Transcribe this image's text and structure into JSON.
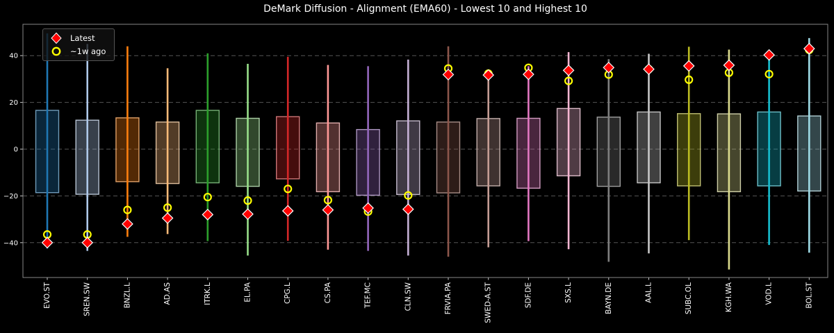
{
  "chart_data": {
    "type": "scatter",
    "subtype": "range-box-whisker",
    "title": "DeMark Diffusion - Alignment (EMA60) - Lowest 10 and Highest 10",
    "xlabel": "",
    "ylabel": "",
    "ylim": [
      -55,
      53.5
    ],
    "yticks": [
      40,
      20,
      0,
      -20,
      -40
    ],
    "grid": "horizontal-dashed",
    "background_color": "#000000",
    "axis_color": "#888888",
    "grid_color": "#565656",
    "text_color": "#ffffff",
    "legend": {
      "position": "upper-left",
      "items": [
        {
          "label": "Latest",
          "marker": "diamond",
          "color": "#ff0000"
        },
        {
          "label": "~1w ago",
          "marker": "open-circle",
          "color": "#ffff00"
        }
      ]
    },
    "categories": [
      "EVO.ST",
      "SREN.SW",
      "BNZL.L",
      "AD.AS",
      "ITRK.L",
      "EL.PA",
      "CPG.L",
      "CS.PA",
      "TEF.MC",
      "CLN.SW",
      "FRVIA.PA",
      "SWED-A.ST",
      "SDF.DE",
      "SXS.L",
      "BAYN.DE",
      "AAL.L",
      "SUBC.OL",
      "KGH.WA",
      "VOD.L",
      "BOL.ST"
    ],
    "series": [
      {
        "ticker": "EVO.ST",
        "color": "#1f77b4",
        "box_low": -18.6,
        "box_high": 16.6,
        "whisker_low": -42.5,
        "whisker_high": 49.5,
        "latest": -40.0,
        "week_ago": -36.5
      },
      {
        "ticker": "SREN.SW",
        "color": "#aec7e8",
        "box_low": -19.3,
        "box_high": 12.4,
        "whisker_low": -43.5,
        "whisker_high": 45.0,
        "latest": -40.0,
        "week_ago": -36.5
      },
      {
        "ticker": "BNZL.L",
        "color": "#ff7f0e",
        "box_low": -13.9,
        "box_high": 13.4,
        "whisker_low": -37.5,
        "whisker_high": 44.0,
        "latest": -32.0,
        "week_ago": -26.0
      },
      {
        "ticker": "AD.AS",
        "color": "#ffbb78",
        "box_low": -14.7,
        "box_high": 11.6,
        "whisker_low": -36.3,
        "whisker_high": 34.6,
        "latest": -29.5,
        "week_ago": -25.0
      },
      {
        "ticker": "ITRK.L",
        "color": "#2ca02c",
        "box_low": -14.4,
        "box_high": 16.6,
        "whisker_low": -39.3,
        "whisker_high": 41.0,
        "latest": -28.0,
        "week_ago": -20.5
      },
      {
        "ticker": "EL.PA",
        "color": "#98df8a",
        "box_low": -15.9,
        "box_high": 13.2,
        "whisker_low": -45.5,
        "whisker_high": 36.5,
        "latest": -27.8,
        "week_ago": -22.0
      },
      {
        "ticker": "CPG.L",
        "color": "#d62728",
        "box_low": -12.7,
        "box_high": 13.9,
        "whisker_low": -39.2,
        "whisker_high": 39.5,
        "latest": -26.4,
        "week_ago": -17.0
      },
      {
        "ticker": "CS.PA",
        "color": "#ff9896",
        "box_low": -18.2,
        "box_high": 11.2,
        "whisker_low": -43.0,
        "whisker_high": 36.0,
        "latest": -26.0,
        "week_ago": -21.8
      },
      {
        "ticker": "TEF.MC",
        "color": "#9467bd",
        "box_low": -19.7,
        "box_high": 8.4,
        "whisker_low": -43.5,
        "whisker_high": 35.5,
        "latest": -25.2,
        "week_ago": -26.7
      },
      {
        "ticker": "CLN.SW",
        "color": "#c5b0d5",
        "box_low": -19.4,
        "box_high": 12.1,
        "whisker_low": -45.5,
        "whisker_high": 38.3,
        "latest": -25.7,
        "week_ago": -19.8
      },
      {
        "ticker": "FRVIA.PA",
        "color": "#8c564b",
        "box_low": -18.7,
        "box_high": 11.6,
        "whisker_low": -46.0,
        "whisker_high": 44.0,
        "latest": 31.9,
        "week_ago": 34.5
      },
      {
        "ticker": "SWED-A.ST",
        "color": "#c49c94",
        "box_low": -15.7,
        "box_high": 13.1,
        "whisker_low": -42.0,
        "whisker_high": 32.5,
        "latest": 31.7,
        "week_ago": 32.3
      },
      {
        "ticker": "SDF.DE",
        "color": "#e377c2",
        "box_low": -16.7,
        "box_high": 13.2,
        "whisker_low": -39.3,
        "whisker_high": 35.5,
        "latest": 32.0,
        "week_ago": 34.8
      },
      {
        "ticker": "SXS.L",
        "color": "#f7b6d2",
        "box_low": -11.4,
        "box_high": 17.4,
        "whisker_low": -42.8,
        "whisker_high": 41.5,
        "latest": 33.7,
        "week_ago": 29.2
      },
      {
        "ticker": "BAYN.DE",
        "color": "#7f7f7f",
        "box_low": -15.9,
        "box_high": 13.7,
        "whisker_low": -48.2,
        "whisker_high": 38.5,
        "latest": 34.9,
        "week_ago": 31.9
      },
      {
        "ticker": "AAL.L",
        "color": "#c7c7c7",
        "box_low": -14.4,
        "box_high": 15.9,
        "whisker_low": -44.6,
        "whisker_high": 40.8,
        "latest": 34.2,
        "week_ago": 34.2
      },
      {
        "ticker": "SUBC.OL",
        "color": "#bcbd22",
        "box_low": -15.7,
        "box_high": 15.2,
        "whisker_low": -38.9,
        "whisker_high": 43.8,
        "latest": 35.6,
        "week_ago": 29.7
      },
      {
        "ticker": "KGH.WA",
        "color": "#dbdb8d",
        "box_low": -18.2,
        "box_high": 15.1,
        "whisker_low": -51.5,
        "whisker_high": 42.6,
        "latest": 35.9,
        "week_ago": 32.7
      },
      {
        "ticker": "VOD.L",
        "color": "#17becf",
        "box_low": -15.7,
        "box_high": 15.9,
        "whisker_low": -41.0,
        "whisker_high": 40.5,
        "latest": 40.3,
        "week_ago": 32.1
      },
      {
        "ticker": "BOL.ST",
        "color": "#9edae5",
        "box_low": -17.9,
        "box_high": 14.2,
        "whisker_low": -44.3,
        "whisker_high": 47.5,
        "latest": 43.0,
        "week_ago": 42.5
      }
    ]
  }
}
